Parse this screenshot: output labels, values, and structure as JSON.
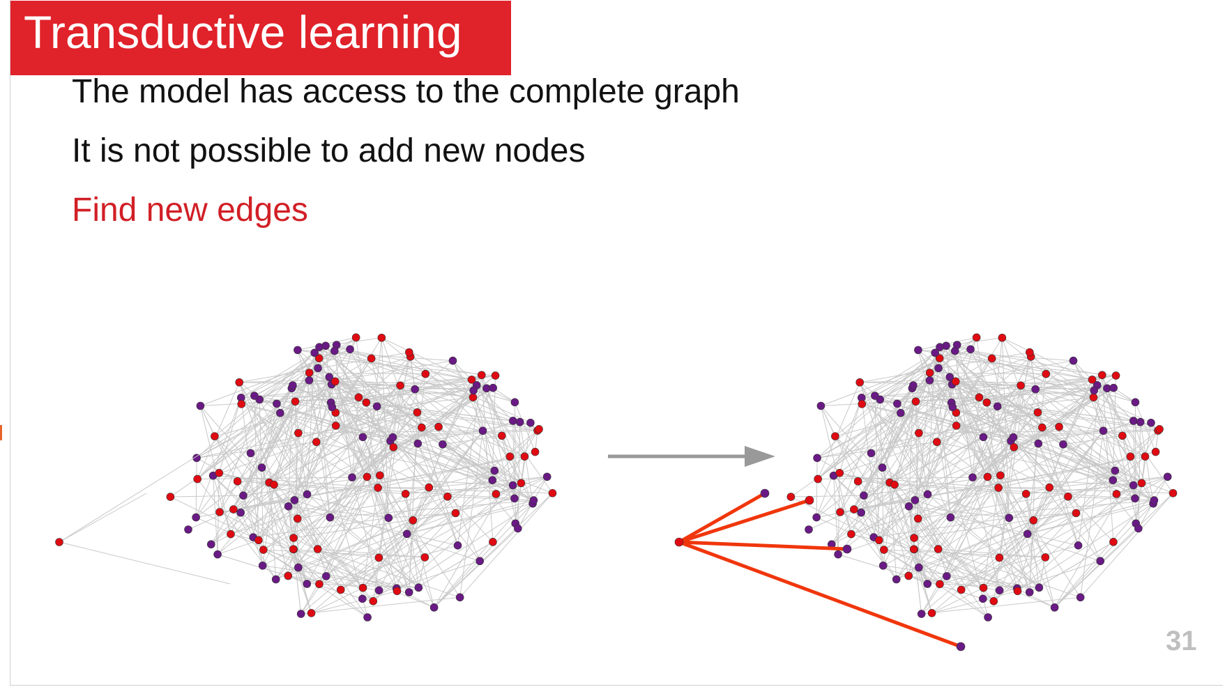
{
  "slide": {
    "title": "Transductive learning",
    "bullets": [
      "The model has access to the complete graph",
      "It is not possible to add new nodes",
      "Find new edges"
    ],
    "page_number": "31"
  },
  "colors": {
    "title_background": "#e0222a",
    "highlight_text": "#d11f26",
    "node_red": "#e00b12",
    "node_purple": "#6a1a85",
    "edge_gray": "#c8c8c8",
    "new_edge": "#f0360c",
    "arrow": "#999999"
  },
  "diagram": {
    "description_icons": [
      "graph-before",
      "transition-arrow",
      "graph-after-with-new-edges"
    ],
    "new_edge_count": 4
  }
}
